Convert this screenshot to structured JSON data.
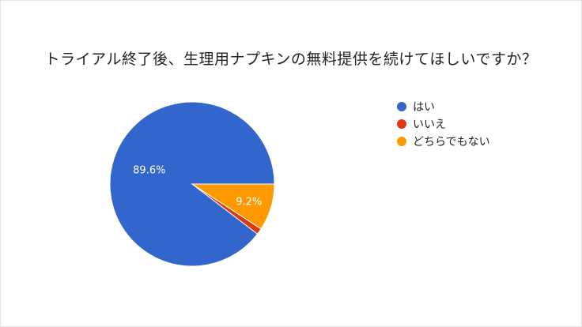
{
  "chart_data": {
    "type": "pie",
    "title": "トライアル終了後、生理用ナプキンの無料提供を続けてほしいですか？",
    "slices": [
      {
        "label": "はい",
        "value": 89.6,
        "color": "#3366cc",
        "data_label": "89.6%"
      },
      {
        "label": "いいえ",
        "value": 1.2,
        "color": "#dc3912",
        "data_label": ""
      },
      {
        "label": "どちらでもない",
        "value": 9.2,
        "color": "#ff9900",
        "data_label": "9.2%"
      }
    ],
    "legend_position": "right"
  }
}
